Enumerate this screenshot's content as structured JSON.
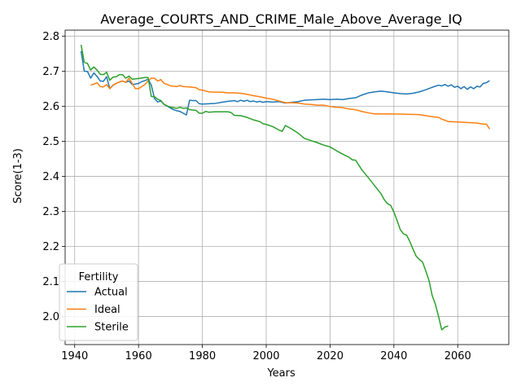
{
  "chart_data": {
    "type": "line",
    "title": "Average_COURTS_AND_CRIME_Male_Above_Average_IQ",
    "xlabel": "Years",
    "ylabel": "Score(1-3)",
    "xlim": [
      1937,
      2076
    ],
    "ylim": [
      1.92,
      2.817
    ],
    "x_ticks": [
      1940,
      1960,
      1980,
      2000,
      2020,
      2040,
      2060
    ],
    "y_ticks": [
      2.0,
      2.1,
      2.2,
      2.3,
      2.4,
      2.5,
      2.6,
      2.7,
      2.8
    ],
    "grid": true,
    "legend": {
      "title": "Fertility",
      "placement": "lower-left"
    },
    "series": [
      {
        "name": "Actual",
        "color": "#1f77b4",
        "points": [
          [
            1942,
            2.757
          ],
          [
            1943,
            2.7
          ],
          [
            1944,
            2.699
          ],
          [
            1945,
            2.68
          ],
          [
            1946,
            2.695
          ],
          [
            1947,
            2.685
          ],
          [
            1948,
            2.672
          ],
          [
            1949,
            2.671
          ],
          [
            1950,
            2.684
          ],
          [
            1951,
            2.65
          ],
          [
            1952,
            2.66
          ],
          [
            1953,
            2.665
          ],
          [
            1954,
            2.669
          ],
          [
            1955,
            2.672
          ],
          [
            1956,
            2.668
          ],
          [
            1957,
            2.672
          ],
          [
            1958,
            2.662
          ],
          [
            1959,
            2.663
          ],
          [
            1960,
            2.665
          ],
          [
            1961,
            2.67
          ],
          [
            1962,
            2.673
          ],
          [
            1963,
            2.677
          ],
          [
            1964,
            2.66
          ],
          [
            1965,
            2.622
          ],
          [
            1966,
            2.612
          ],
          [
            1967,
            2.615
          ],
          [
            1968,
            2.605
          ],
          [
            1969,
            2.6
          ],
          [
            1970,
            2.595
          ],
          [
            1971,
            2.59
          ],
          [
            1972,
            2.587
          ],
          [
            1973,
            2.585
          ],
          [
            1974,
            2.58
          ],
          [
            1975,
            2.575
          ],
          [
            1976,
            2.617
          ],
          [
            1977,
            2.616
          ],
          [
            1978,
            2.616
          ],
          [
            1979,
            2.607
          ],
          [
            1980,
            2.606
          ],
          [
            1982,
            2.607
          ],
          [
            1984,
            2.608
          ],
          [
            1986,
            2.611
          ],
          [
            1988,
            2.614
          ],
          [
            1990,
            2.616
          ],
          [
            1991,
            2.613
          ],
          [
            1992,
            2.617
          ],
          [
            1993,
            2.614
          ],
          [
            1994,
            2.617
          ],
          [
            1995,
            2.613
          ],
          [
            1996,
            2.615
          ],
          [
            1997,
            2.612
          ],
          [
            1998,
            2.614
          ],
          [
            1999,
            2.611
          ],
          [
            2000,
            2.613
          ],
          [
            2002,
            2.612
          ],
          [
            2004,
            2.613
          ],
          [
            2006,
            2.609
          ],
          [
            2008,
            2.611
          ],
          [
            2010,
            2.613
          ],
          [
            2012,
            2.617
          ],
          [
            2014,
            2.618
          ],
          [
            2016,
            2.619
          ],
          [
            2018,
            2.62
          ],
          [
            2020,
            2.619
          ],
          [
            2022,
            2.62
          ],
          [
            2024,
            2.619
          ],
          [
            2026,
            2.622
          ],
          [
            2028,
            2.624
          ],
          [
            2029,
            2.628
          ],
          [
            2030,
            2.632
          ],
          [
            2032,
            2.638
          ],
          [
            2034,
            2.641
          ],
          [
            2036,
            2.643
          ],
          [
            2038,
            2.641
          ],
          [
            2040,
            2.638
          ],
          [
            2042,
            2.636
          ],
          [
            2044,
            2.635
          ],
          [
            2046,
            2.637
          ],
          [
            2048,
            2.641
          ],
          [
            2050,
            2.647
          ],
          [
            2052,
            2.654
          ],
          [
            2054,
            2.66
          ],
          [
            2055,
            2.658
          ],
          [
            2056,
            2.662
          ],
          [
            2057,
            2.657
          ],
          [
            2058,
            2.661
          ],
          [
            2059,
            2.654
          ],
          [
            2060,
            2.657
          ],
          [
            2061,
            2.65
          ],
          [
            2062,
            2.656
          ],
          [
            2063,
            2.648
          ],
          [
            2064,
            2.655
          ],
          [
            2065,
            2.65
          ],
          [
            2066,
            2.657
          ],
          [
            2067,
            2.655
          ],
          [
            2068,
            2.665
          ],
          [
            2069,
            2.667
          ],
          [
            2070,
            2.673
          ]
        ]
      },
      {
        "name": "Ideal",
        "color": "#ff7f0e",
        "points": [
          [
            1945,
            2.66
          ],
          [
            1946,
            2.663
          ],
          [
            1947,
            2.667
          ],
          [
            1948,
            2.656
          ],
          [
            1949,
            2.655
          ],
          [
            1950,
            2.662
          ],
          [
            1951,
            2.65
          ],
          [
            1952,
            2.66
          ],
          [
            1953,
            2.665
          ],
          [
            1954,
            2.669
          ],
          [
            1955,
            2.672
          ],
          [
            1956,
            2.668
          ],
          [
            1957,
            2.68
          ],
          [
            1958,
            2.665
          ],
          [
            1959,
            2.65
          ],
          [
            1960,
            2.65
          ],
          [
            1961,
            2.656
          ],
          [
            1962,
            2.662
          ],
          [
            1963,
            2.672
          ],
          [
            1964,
            2.68
          ],
          [
            1965,
            2.68
          ],
          [
            1966,
            2.672
          ],
          [
            1967,
            2.676
          ],
          [
            1968,
            2.665
          ],
          [
            1969,
            2.662
          ],
          [
            1970,
            2.658
          ],
          [
            1972,
            2.656
          ],
          [
            1973,
            2.659
          ],
          [
            1974,
            2.656
          ],
          [
            1976,
            2.655
          ],
          [
            1978,
            2.653
          ],
          [
            1979,
            2.647
          ],
          [
            1980,
            2.646
          ],
          [
            1982,
            2.641
          ],
          [
            1984,
            2.64
          ],
          [
            1986,
            2.64
          ],
          [
            1988,
            2.638
          ],
          [
            1990,
            2.638
          ],
          [
            1992,
            2.637
          ],
          [
            1994,
            2.634
          ],
          [
            1996,
            2.63
          ],
          [
            1998,
            2.627
          ],
          [
            2000,
            2.623
          ],
          [
            2002,
            2.62
          ],
          [
            2004,
            2.615
          ],
          [
            2006,
            2.61
          ],
          [
            2008,
            2.61
          ],
          [
            2010,
            2.609
          ],
          [
            2012,
            2.606
          ],
          [
            2014,
            2.605
          ],
          [
            2016,
            2.603
          ],
          [
            2018,
            2.603
          ],
          [
            2020,
            2.599
          ],
          [
            2022,
            2.597
          ],
          [
            2024,
            2.596
          ],
          [
            2026,
            2.592
          ],
          [
            2028,
            2.59
          ],
          [
            2030,
            2.585
          ],
          [
            2032,
            2.581
          ],
          [
            2034,
            2.578
          ],
          [
            2036,
            2.578
          ],
          [
            2040,
            2.578
          ],
          [
            2044,
            2.577
          ],
          [
            2048,
            2.576
          ],
          [
            2050,
            2.573
          ],
          [
            2052,
            2.57
          ],
          [
            2054,
            2.568
          ],
          [
            2055,
            2.563
          ],
          [
            2056,
            2.56
          ],
          [
            2057,
            2.556
          ],
          [
            2060,
            2.555
          ],
          [
            2064,
            2.553
          ],
          [
            2066,
            2.552
          ],
          [
            2068,
            2.549
          ],
          [
            2069,
            2.549
          ],
          [
            2070,
            2.535
          ]
        ]
      },
      {
        "name": "Sterile",
        "color": "#2ca02c",
        "points": [
          [
            1942,
            2.775
          ],
          [
            1943,
            2.725
          ],
          [
            1944,
            2.722
          ],
          [
            1945,
            2.703
          ],
          [
            1946,
            2.712
          ],
          [
            1947,
            2.703
          ],
          [
            1948,
            2.691
          ],
          [
            1949,
            2.69
          ],
          [
            1950,
            2.697
          ],
          [
            1951,
            2.674
          ],
          [
            1952,
            2.683
          ],
          [
            1953,
            2.684
          ],
          [
            1954,
            2.69
          ],
          [
            1955,
            2.69
          ],
          [
            1956,
            2.68
          ],
          [
            1957,
            2.686
          ],
          [
            1958,
            2.677
          ],
          [
            1960,
            2.679
          ],
          [
            1962,
            2.682
          ],
          [
            1963,
            2.682
          ],
          [
            1964,
            2.628
          ],
          [
            1965,
            2.627
          ],
          [
            1966,
            2.62
          ],
          [
            1967,
            2.616
          ],
          [
            1968,
            2.605
          ],
          [
            1970,
            2.597
          ],
          [
            1972,
            2.594
          ],
          [
            1973,
            2.597
          ],
          [
            1974,
            2.594
          ],
          [
            1975,
            2.595
          ],
          [
            1976,
            2.59
          ],
          [
            1978,
            2.588
          ],
          [
            1979,
            2.58
          ],
          [
            1980,
            2.58
          ],
          [
            1981,
            2.585
          ],
          [
            1982,
            2.583
          ],
          [
            1984,
            2.584
          ],
          [
            1986,
            2.584
          ],
          [
            1988,
            2.584
          ],
          [
            1989,
            2.582
          ],
          [
            1990,
            2.574
          ],
          [
            1992,
            2.573
          ],
          [
            1994,
            2.568
          ],
          [
            1996,
            2.561
          ],
          [
            1998,
            2.556
          ],
          [
            1999,
            2.55
          ],
          [
            2000,
            2.548
          ],
          [
            2002,
            2.542
          ],
          [
            2004,
            2.532
          ],
          [
            2005,
            2.528
          ],
          [
            2006,
            2.545
          ],
          [
            2008,
            2.535
          ],
          [
            2010,
            2.523
          ],
          [
            2012,
            2.508
          ],
          [
            2014,
            2.502
          ],
          [
            2016,
            2.496
          ],
          [
            2018,
            2.489
          ],
          [
            2020,
            2.484
          ],
          [
            2022,
            2.473
          ],
          [
            2024,
            2.463
          ],
          [
            2026,
            2.454
          ],
          [
            2027,
            2.447
          ],
          [
            2028,
            2.446
          ],
          [
            2029,
            2.432
          ],
          [
            2030,
            2.418
          ],
          [
            2032,
            2.396
          ],
          [
            2034,
            2.373
          ],
          [
            2036,
            2.35
          ],
          [
            2037,
            2.333
          ],
          [
            2038,
            2.322
          ],
          [
            2039,
            2.317
          ],
          [
            2040,
            2.298
          ],
          [
            2041,
            2.274
          ],
          [
            2042,
            2.248
          ],
          [
            2043,
            2.236
          ],
          [
            2044,
            2.232
          ],
          [
            2045,
            2.214
          ],
          [
            2046,
            2.192
          ],
          [
            2047,
            2.172
          ],
          [
            2048,
            2.163
          ],
          [
            2049,
            2.155
          ],
          [
            2050,
            2.13
          ],
          [
            2051,
            2.103
          ],
          [
            2052,
            2.06
          ],
          [
            2053,
            2.035
          ],
          [
            2054,
            2.0
          ],
          [
            2055,
            1.962
          ],
          [
            2056,
            1.97
          ],
          [
            2057,
            1.973
          ]
        ]
      }
    ]
  }
}
